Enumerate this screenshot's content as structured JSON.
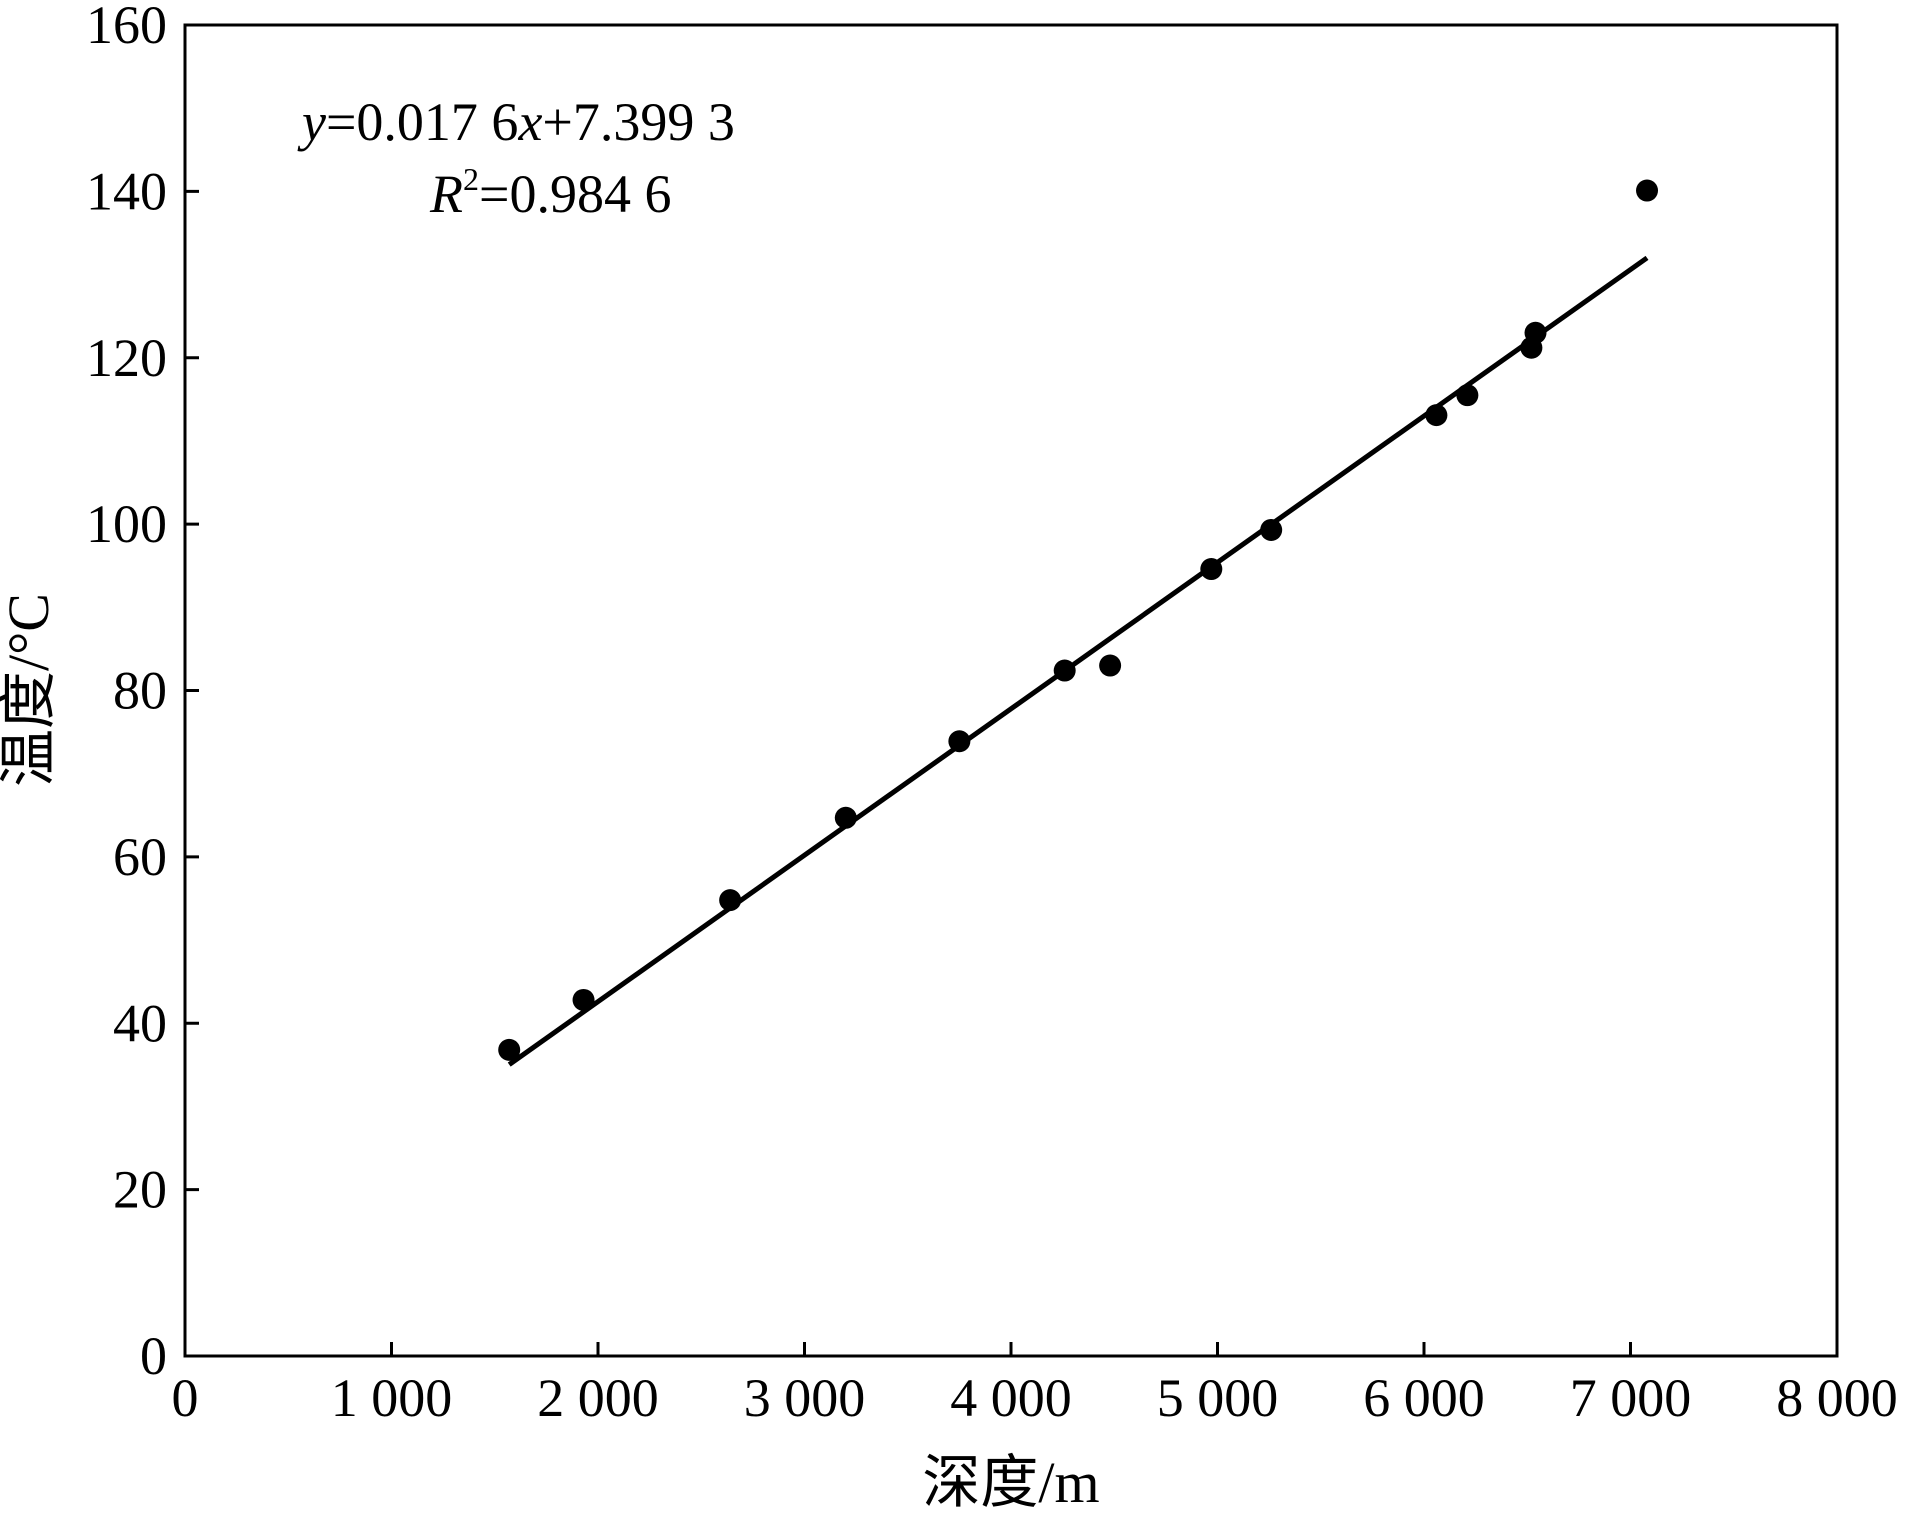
{
  "chart_data": {
    "type": "scatter",
    "title": "",
    "xlabel": "深度/m",
    "ylabel": "温度/°C",
    "xlim": [
      0,
      8000
    ],
    "ylim": [
      0,
      160
    ],
    "xticks": [
      0,
      1000,
      2000,
      3000,
      4000,
      5000,
      6000,
      7000,
      8000
    ],
    "xtick_labels": [
      "0",
      "1 000",
      "2 000",
      "3 000",
      "4 000",
      "5 000",
      "6 000",
      "7 000",
      "8 000"
    ],
    "yticks": [
      0,
      20,
      40,
      60,
      80,
      100,
      120,
      140,
      160
    ],
    "ytick_labels": [
      "0",
      "20",
      "40",
      "60",
      "80",
      "100",
      "120",
      "140",
      "160"
    ],
    "grid": false,
    "points": [
      {
        "x": 1570,
        "y": 36.8
      },
      {
        "x": 1930,
        "y": 42.8
      },
      {
        "x": 2640,
        "y": 54.8
      },
      {
        "x": 3200,
        "y": 64.7
      },
      {
        "x": 3750,
        "y": 73.9
      },
      {
        "x": 4260,
        "y": 82.4
      },
      {
        "x": 4480,
        "y": 83.0
      },
      {
        "x": 4970,
        "y": 94.6
      },
      {
        "x": 5260,
        "y": 99.3
      },
      {
        "x": 6060,
        "y": 113.1
      },
      {
        "x": 6210,
        "y": 115.5
      },
      {
        "x": 6520,
        "y": 121.2
      },
      {
        "x": 6540,
        "y": 123.0
      },
      {
        "x": 7080,
        "y": 140.1
      }
    ],
    "fit_line": {
      "slope": 0.0176,
      "intercept": 7.3993,
      "x_range": [
        1570,
        7080
      ]
    },
    "annotations": {
      "equation_var_y": "y",
      "equation_mid": "=0.017 6",
      "equation_var_x": "x",
      "equation_tail": "+7.399 3",
      "r2_var": "R",
      "r2_sup": "2",
      "r2_value": "=0.984 6"
    },
    "colors": {
      "marker": "#000000",
      "line": "#000000",
      "axes": "#000000"
    }
  }
}
